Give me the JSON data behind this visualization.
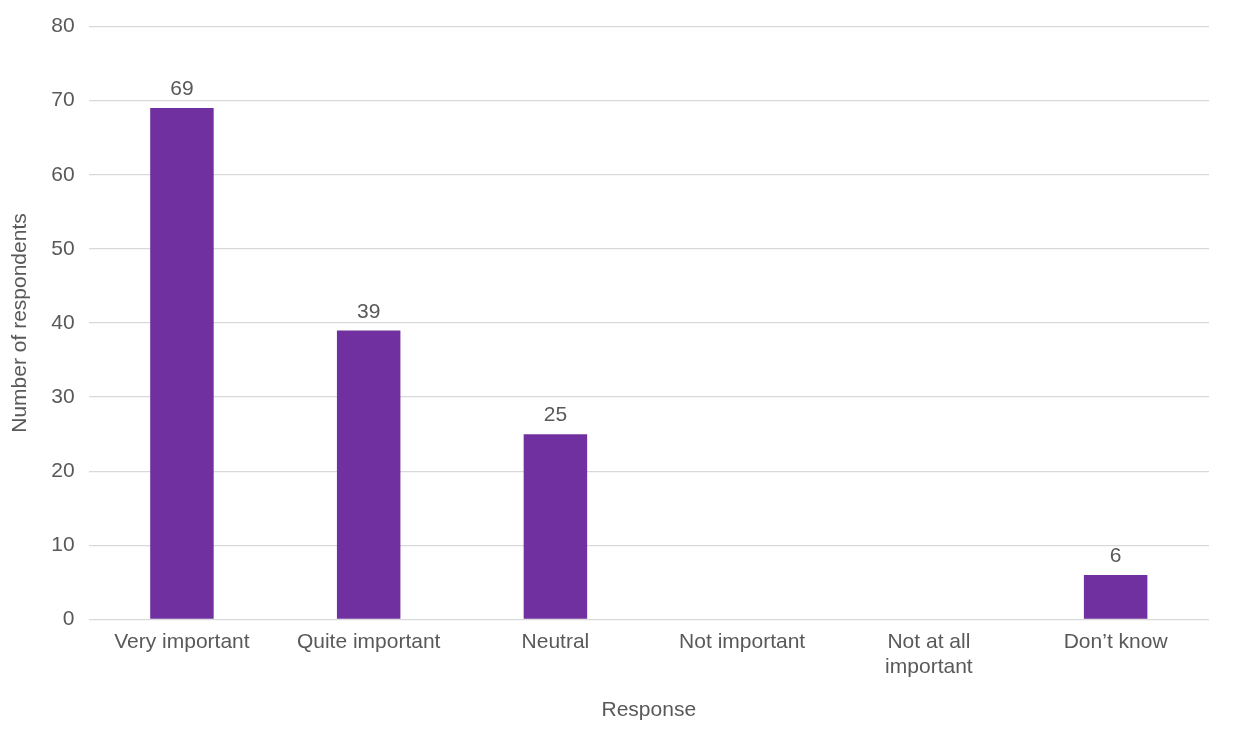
{
  "chart_data": {
    "type": "bar",
    "xlabel": "Response",
    "ylabel": "Number of respondents",
    "categories": [
      "Very important",
      "Quite important",
      "Neutral",
      "Not important",
      "Not at all important",
      "Don’t know"
    ],
    "values": [
      69,
      39,
      25,
      0,
      0,
      6
    ],
    "value_labels": [
      "69",
      "39",
      "25",
      null,
      null,
      "6"
    ],
    "color": "#7030a0",
    "ylim": [
      0,
      80
    ],
    "yticks": [
      0,
      10,
      20,
      30,
      40,
      50,
      60,
      70,
      80
    ],
    "grid": "y",
    "legend": false
  }
}
